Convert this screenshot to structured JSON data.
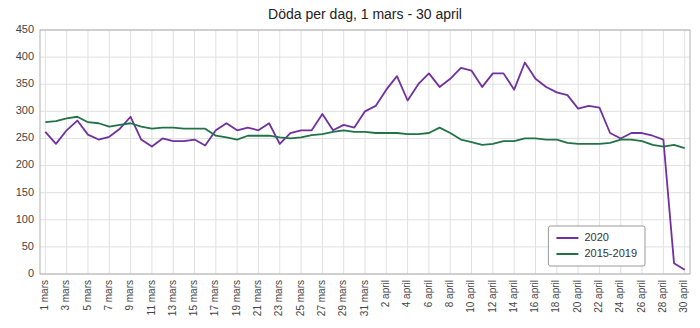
{
  "chart_data": {
    "type": "line",
    "title": "Döda per dag, 1 mars - 30 april",
    "categories": [
      "1 mars",
      null,
      "3 mars",
      null,
      "5 mars",
      null,
      "7 mars",
      null,
      "9 mars",
      null,
      "11 mars",
      null,
      "13 mars",
      null,
      "15 mars",
      null,
      "17 mars",
      null,
      "19 mars",
      null,
      "21 mars",
      null,
      "23 mars",
      null,
      "25 mars",
      null,
      "27 mars",
      null,
      "29 mars",
      null,
      "31 mars",
      null,
      "2 april",
      null,
      "4 april",
      null,
      "6 april",
      null,
      "8 april",
      null,
      "10 april",
      null,
      "12 april",
      null,
      "14 april",
      null,
      "16 april",
      null,
      "18 april",
      null,
      "20 april",
      null,
      "22 april",
      null,
      "24 april",
      null,
      "26 april",
      null,
      "28 april",
      null,
      "30 april"
    ],
    "series": [
      {
        "name": "2020",
        "color": "#7030A0",
        "values": [
          262,
          240,
          265,
          283,
          257,
          248,
          253,
          268,
          290,
          248,
          235,
          250,
          245,
          245,
          248,
          237,
          265,
          278,
          265,
          270,
          265,
          278,
          240,
          260,
          265,
          265,
          295,
          265,
          275,
          270,
          300,
          310,
          340,
          365,
          320,
          350,
          370,
          345,
          360,
          380,
          375,
          345,
          370,
          370,
          340,
          390,
          360,
          345,
          335,
          330,
          305,
          310,
          307,
          260,
          250,
          260,
          260,
          255,
          248,
          20,
          8
        ]
      },
      {
        "name": "2015-2019",
        "color": "#217346",
        "values": [
          280,
          282,
          287,
          290,
          280,
          278,
          272,
          275,
          278,
          272,
          268,
          270,
          270,
          268,
          268,
          268,
          255,
          252,
          248,
          255,
          255,
          255,
          252,
          250,
          252,
          256,
          258,
          262,
          265,
          262,
          262,
          260,
          260,
          260,
          258,
          258,
          260,
          270,
          260,
          248,
          243,
          238,
          240,
          245,
          245,
          250,
          250,
          248,
          248,
          242,
          240,
          240,
          240,
          242,
          248,
          248,
          245,
          238,
          235,
          238,
          232
        ]
      }
    ],
    "ylim": [
      0,
      450
    ],
    "yticks": [
      0,
      50,
      100,
      150,
      200,
      250,
      300,
      350,
      400,
      450
    ],
    "grid": true,
    "legend": "lower right"
  }
}
